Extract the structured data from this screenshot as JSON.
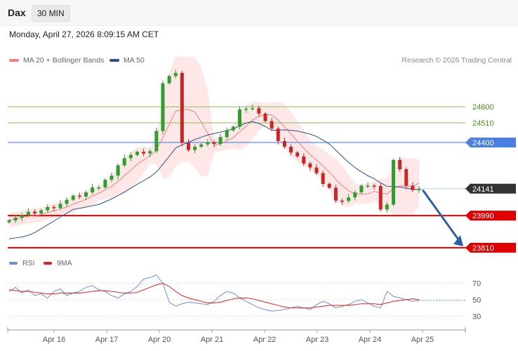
{
  "header": {
    "symbol": "Dax",
    "timeframe": "30 MIN",
    "datetime": "Monday, April 27, 2026 8:09:15 AM CET"
  },
  "legend": {
    "ma20_bb": "MA 20 + Bollinger Bands",
    "ma50": "MA 50",
    "credit": "Research © 2026 Trading Central",
    "rsi": "RSI",
    "ma9": "9MA"
  },
  "colors": {
    "ma20": "#f08080",
    "band_fill": "#fde3e3",
    "ma50": "#2d4f8e",
    "green_line": "#8dba5c",
    "blue_line": "#4a7fe3",
    "red_line": "#e00000",
    "candle_up": "#2f9e2f",
    "candle_down": "#c62828",
    "current": "#333333",
    "arrow": "#2f5fa3",
    "rsi": "#6b8fd9",
    "rsi_ma": "#e02020"
  },
  "chart_data": [
    {
      "type": "candlestick",
      "title": "Dax",
      "x_labels": [
        "Apr 16",
        "Apr 17",
        "Apr 20",
        "Apr 21",
        "Apr 22",
        "Apr 23",
        "Apr 24",
        "Apr 25"
      ],
      "ylim": [
        23790,
        24805
      ],
      "levels": [
        {
          "value": 24600,
          "label": "24600",
          "kind": "resistance"
        },
        {
          "value": 24510,
          "label": "24510",
          "kind": "resistance"
        },
        {
          "value": 24400,
          "label": "24400",
          "kind": "pivot"
        },
        {
          "value": 24141,
          "label": "24141",
          "kind": "last"
        },
        {
          "value": 23990,
          "label": "23990",
          "kind": "support"
        },
        {
          "value": 23810,
          "label": "23810",
          "kind": "support"
        }
      ],
      "price_path": [
        [
          0,
          23975
        ],
        [
          2,
          23990
        ],
        [
          4,
          24010
        ],
        [
          6,
          24030
        ],
        [
          8,
          24060
        ],
        [
          10,
          24090
        ],
        [
          12,
          24120
        ],
        [
          14,
          24160
        ],
        [
          15,
          24195
        ],
        [
          16,
          24210
        ],
        [
          17,
          24260
        ],
        [
          18,
          24320
        ],
        [
          19,
          24330
        ],
        [
          20,
          24340
        ],
        [
          21,
          24350
        ],
        [
          22,
          24355
        ],
        [
          23,
          24460
        ],
        [
          24,
          24720
        ],
        [
          25,
          24780
        ],
        [
          26,
          24790
        ],
        [
          27,
          24390
        ],
        [
          28,
          24370
        ],
        [
          29,
          24380
        ],
        [
          30,
          24385
        ],
        [
          31,
          24390
        ],
        [
          32,
          24400
        ],
        [
          33,
          24430
        ],
        [
          34,
          24460
        ],
        [
          35,
          24500
        ],
        [
          36,
          24590
        ],
        [
          37,
          24585
        ],
        [
          38,
          24580
        ],
        [
          39,
          24570
        ],
        [
          40,
          24520
        ],
        [
          41,
          24470
        ],
        [
          42,
          24420
        ],
        [
          43,
          24380
        ],
        [
          44,
          24340
        ],
        [
          45,
          24310
        ],
        [
          46,
          24290
        ],
        [
          47,
          24260
        ],
        [
          48,
          24220
        ],
        [
          49,
          24180
        ],
        [
          50,
          24150
        ],
        [
          51,
          24070
        ],
        [
          52,
          24060
        ],
        [
          53,
          24100
        ],
        [
          54,
          24120
        ],
        [
          55,
          24150
        ],
        [
          56,
          24170
        ],
        [
          57,
          24160
        ],
        [
          58,
          24020
        ],
        [
          59,
          24040
        ],
        [
          60,
          24310
        ],
        [
          61,
          24250
        ],
        [
          62,
          24150
        ],
        [
          63,
          24145
        ],
        [
          64,
          24141
        ]
      ],
      "forecast_target": 23810
    },
    {
      "type": "line",
      "title": "RSI",
      "ylim": [
        20,
        90
      ],
      "ticks": [
        30,
        50,
        70
      ],
      "series": [
        {
          "name": "RSI",
          "values": [
            60,
            65,
            58,
            62,
            55,
            57,
            52,
            60,
            63,
            55,
            58,
            60,
            65,
            67,
            62,
            60,
            55,
            52,
            57,
            60,
            66,
            75,
            77,
            80,
            70,
            47,
            42,
            45,
            47,
            46,
            45,
            44,
            48,
            55,
            60,
            58,
            52,
            48,
            44,
            40,
            38,
            36,
            37,
            38,
            40,
            42,
            40,
            38,
            44,
            48,
            45,
            40,
            42,
            44,
            48,
            50,
            46,
            42,
            40,
            60,
            54,
            52,
            50,
            48,
            49
          ]
        },
        {
          "name": "9MA",
          "values": [
            62,
            61,
            60,
            60,
            59,
            58,
            57,
            57,
            58,
            58,
            58,
            58,
            59,
            60,
            61,
            61,
            60,
            59,
            58,
            58,
            59,
            62,
            65,
            68,
            70,
            66,
            60,
            55,
            52,
            50,
            48,
            46,
            46,
            47,
            49,
            51,
            52,
            52,
            51,
            49,
            47,
            45,
            43,
            41,
            40,
            40,
            40,
            40,
            41,
            42,
            43,
            43,
            43,
            43,
            44,
            45,
            45,
            45,
            44,
            46,
            48,
            49,
            50,
            51,
            50
          ]
        }
      ]
    }
  ]
}
